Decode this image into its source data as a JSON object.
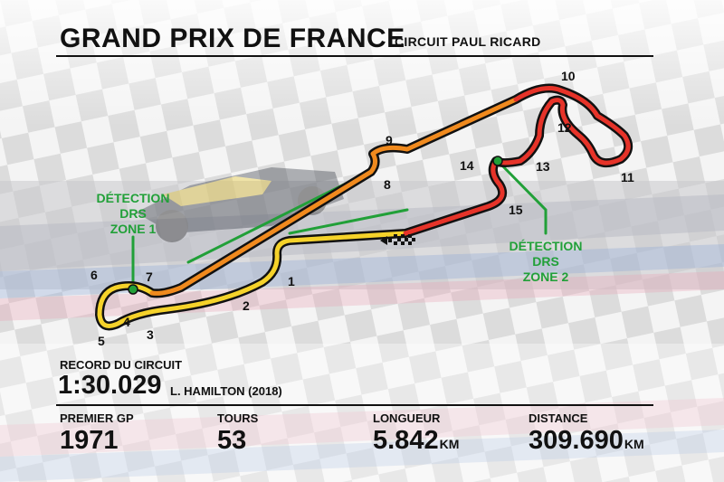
{
  "header": {
    "title": "GRAND PRIX DE FRANCE",
    "subtitle": "CIRCUIT PAUL RICARD"
  },
  "track_map": {
    "turns": [
      "1",
      "2",
      "3",
      "4",
      "5",
      "6",
      "7",
      "8",
      "9",
      "10",
      "11",
      "12",
      "13",
      "14",
      "15"
    ],
    "drs_zones": [
      {
        "lines": [
          "DÉTECTION",
          "DRS",
          "ZONE 1"
        ]
      },
      {
        "lines": [
          "DÉTECTION",
          "DRS",
          "ZONE 2"
        ]
      }
    ],
    "sector_colors": [
      "#e63329",
      "#f5d22a",
      "#f08a1e"
    ],
    "drs_color": "#21a038",
    "start_finish_icon": "checkered-flag-icon"
  },
  "record": {
    "label": "RECORD DU CIRCUIT",
    "time": "1:30.029",
    "holder": "L. HAMILTON (2018)"
  },
  "stats": [
    {
      "label": "PREMIER GP",
      "value": "1971",
      "unit": ""
    },
    {
      "label": "TOURS",
      "value": "53",
      "unit": ""
    },
    {
      "label": "LONGUEUR",
      "value": "5.842",
      "unit": "KM"
    },
    {
      "label": "DISTANCE",
      "value": "309.690",
      "unit": "KM"
    }
  ]
}
